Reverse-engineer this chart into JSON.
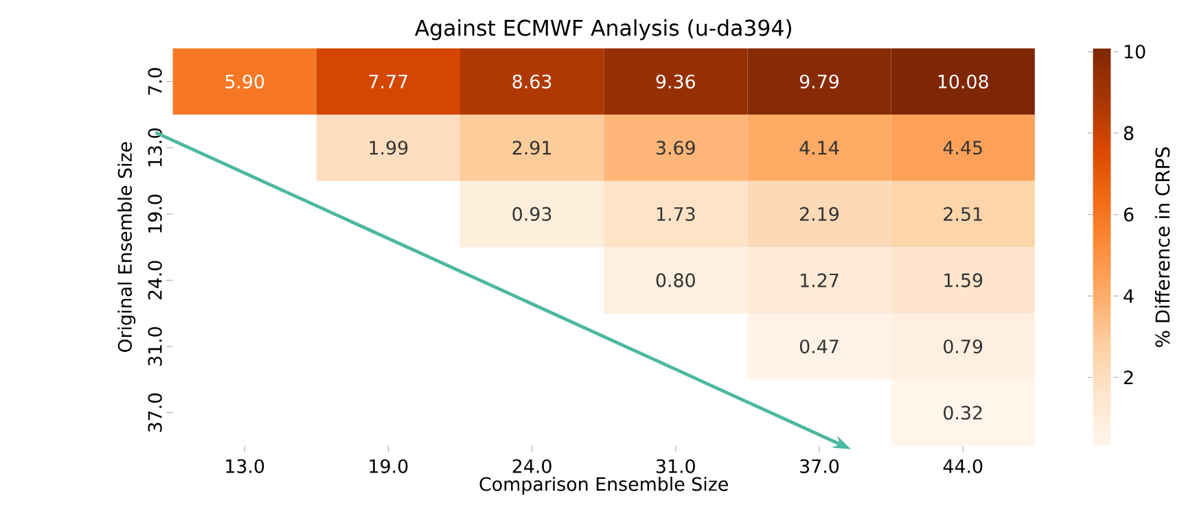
{
  "chart_data": {
    "type": "heatmap",
    "title": "Against ECMWF Analysis (u-da394)",
    "xlabel": "Comparison Ensemble Size",
    "ylabel": "Original Ensemble Size",
    "clabel": "% Difference in CRPS",
    "categories": [
      "13.0",
      "19.0",
      "24.0",
      "31.0",
      "37.0",
      "44.0"
    ],
    "y_categories": [
      "7.0",
      "13.0",
      "19.0",
      "24.0",
      "31.0",
      "37.0"
    ],
    "cells": [
      [
        5.9,
        7.77,
        8.63,
        9.36,
        9.79,
        10.08
      ],
      [
        null,
        1.99,
        2.91,
        3.69,
        4.14,
        4.45
      ],
      [
        null,
        null,
        0.93,
        1.73,
        2.19,
        2.51
      ],
      [
        null,
        null,
        null,
        0.8,
        1.27,
        1.59
      ],
      [
        null,
        null,
        null,
        null,
        0.47,
        0.79
      ],
      [
        null,
        null,
        null,
        null,
        null,
        0.32
      ]
    ],
    "cell_labels": [
      [
        "5.90",
        "7.77",
        "8.63",
        "9.36",
        "9.79",
        "10.08"
      ],
      [
        null,
        "1.99",
        "2.91",
        "3.69",
        "4.14",
        "4.45"
      ],
      [
        null,
        null,
        "0.93",
        "1.73",
        "2.19",
        "2.51"
      ],
      [
        null,
        null,
        null,
        "0.80",
        "1.27",
        "1.59"
      ],
      [
        null,
        null,
        null,
        null,
        "0.47",
        "0.79"
      ],
      [
        null,
        null,
        null,
        null,
        null,
        "0.32"
      ]
    ],
    "clim": [
      0.32,
      10.08
    ],
    "cticks": [
      2,
      4,
      6,
      8,
      10
    ]
  }
}
